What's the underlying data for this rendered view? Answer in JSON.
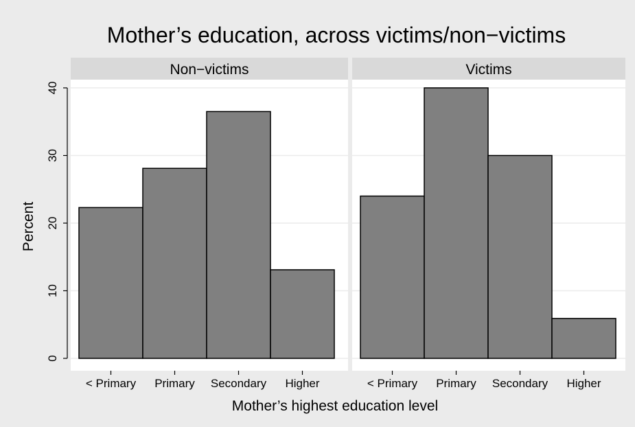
{
  "chart_data": {
    "type": "bar",
    "title": "Mother’s education, across victims/non−victims",
    "xlabel": "Mother’s highest education level",
    "ylabel": "Percent",
    "ylim": [
      0,
      40
    ],
    "yticks": [
      "0",
      "10",
      "20",
      "30",
      "40"
    ],
    "grid": true,
    "categories": [
      "< Primary",
      "Primary",
      "Secondary",
      "Higher"
    ],
    "panels": [
      {
        "label": "Non−victims",
        "values": [
          22.3,
          28.1,
          36.5,
          13.1
        ]
      },
      {
        "label": "Victims",
        "values": [
          24.0,
          40.0,
          30.0,
          5.9
        ]
      }
    ],
    "colors": {
      "outer_background": "#ebebeb",
      "plot_background": "#ffffff",
      "panel_strip": "#d9d9d9",
      "bar_fill": "#808080",
      "bar_stroke": "#000000",
      "grid": "#ebebeb"
    }
  }
}
